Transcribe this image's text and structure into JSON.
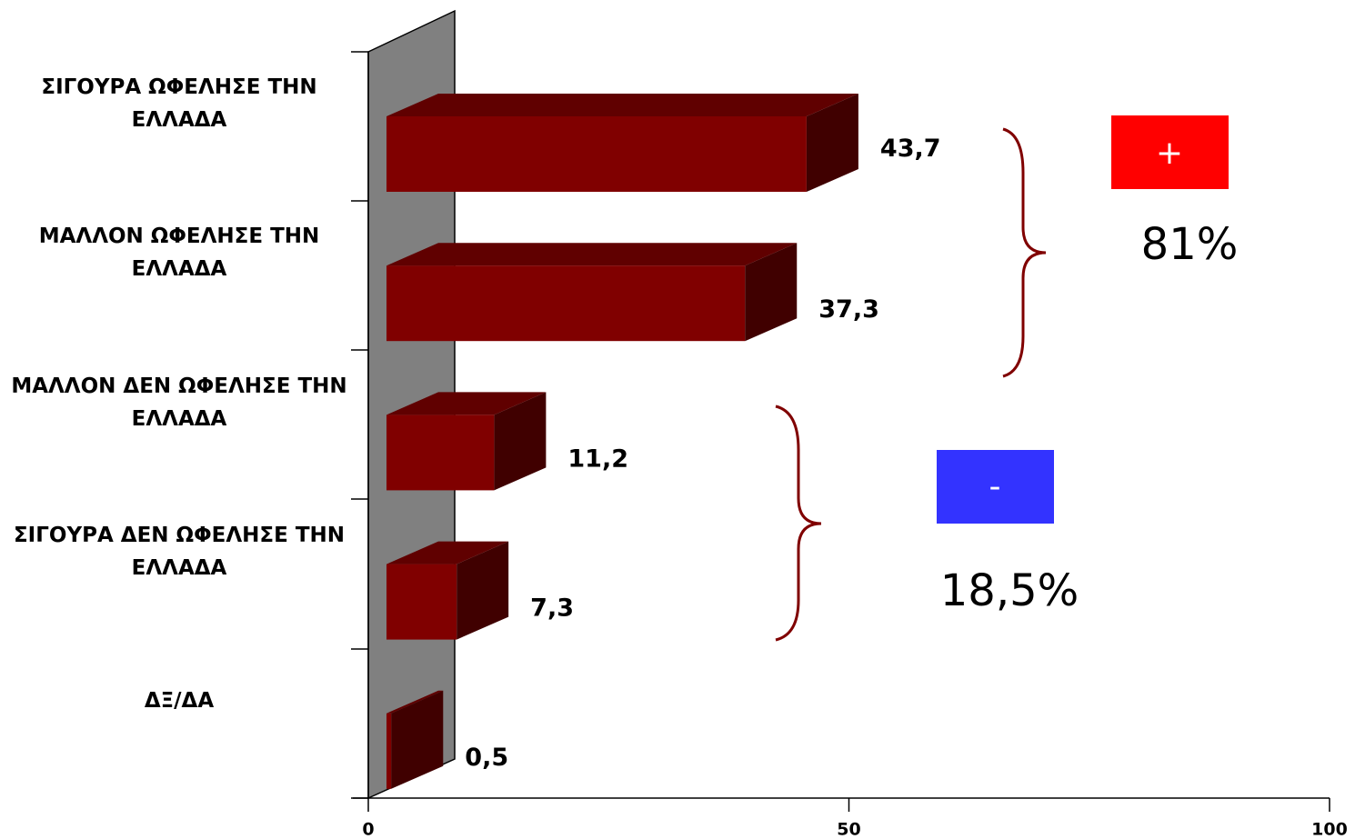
{
  "chart_data": {
    "type": "bar3d",
    "categories": [
      "ΣΙΓΟΥΡΑ ΩΦΕΛΗΣΕ ΤΗΝ ΕΛΛΑΔΑ",
      "ΜΑΛΛΟΝ ΩΦΕΛΗΣΕ ΤΗΝ ΕΛΛΑΔΑ",
      "ΜΑΛΛΟΝ ΔΕΝ ΩΦΕΛΗΣΕ ΤΗΝ ΕΛΛΑΔΑ",
      "ΣΙΓΟΥΡΑ ΔΕΝ ΩΦΕΛΗΣΕ ΤΗΝ ΕΛΛΑΔΑ",
      "ΔΞ/ΔΑ"
    ],
    "values": [
      43.7,
      37.3,
      11.2,
      7.3,
      0.5
    ],
    "value_labels": [
      "43,7",
      "37,3",
      "11,2",
      "7,3",
      "0,5"
    ],
    "color": "#800000",
    "xlim": [
      0,
      100
    ],
    "xticks": [
      0,
      50,
      100
    ],
    "grid": false,
    "annotations": [
      {
        "text": "+",
        "box_color": "#ff0000"
      },
      {
        "text": "81%"
      },
      {
        "text": "-",
        "box_color": "#3333ff"
      },
      {
        "text": "18,5%"
      }
    ]
  }
}
